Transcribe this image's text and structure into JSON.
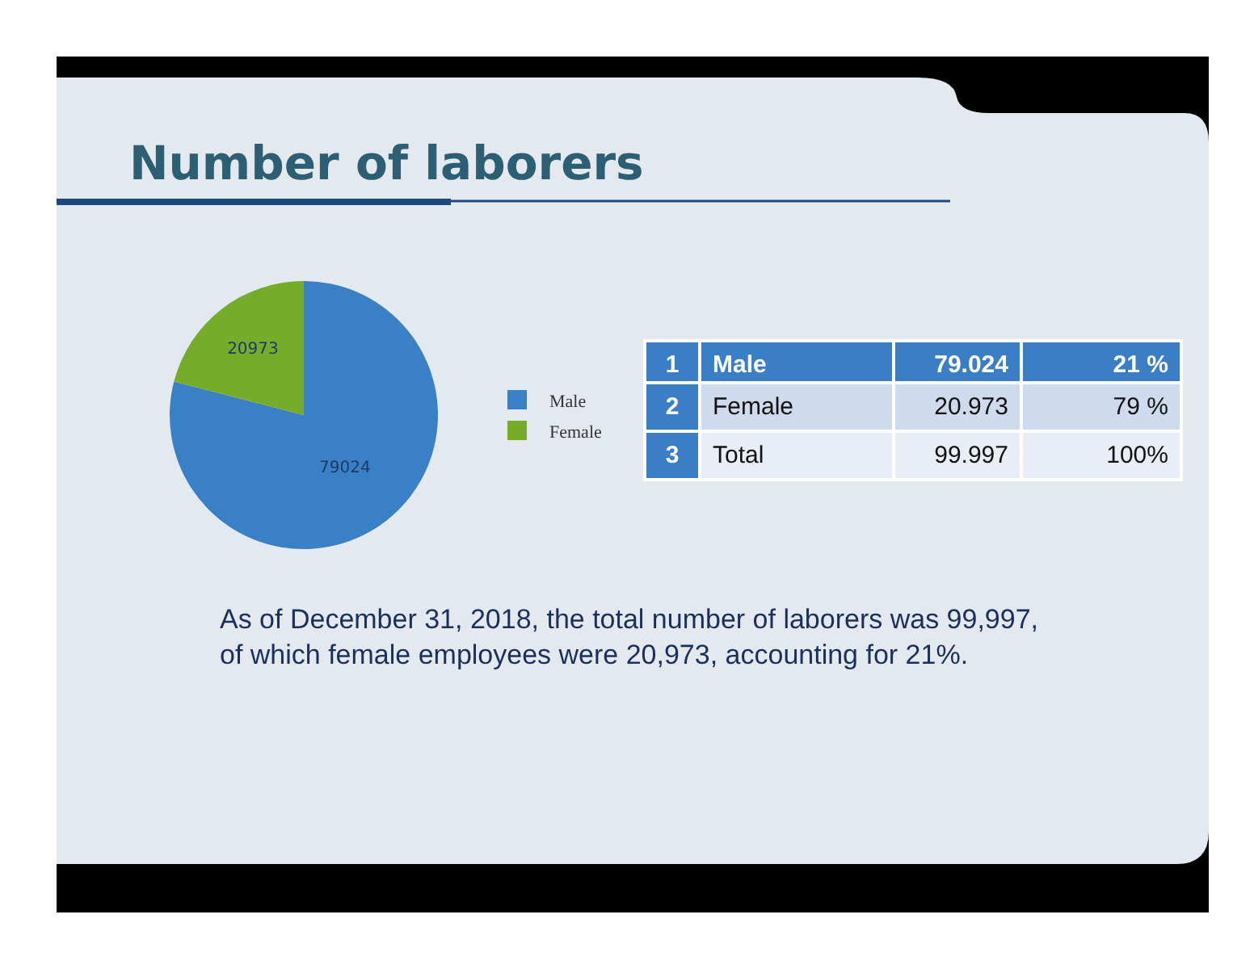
{
  "chart_data": [
    {
      "type": "pie",
      "title": "Number of laborers",
      "categories": [
        "Male",
        "Female"
      ],
      "values": [
        79024,
        20973
      ],
      "colors": [
        "#3a80c6",
        "#77ac2b"
      ],
      "data_labels": true,
      "legend": "right",
      "annotations": [
        "As of December 31, 2018, the total number of laborers was 99,997, of which female employees were 20,973, accounting for 21%."
      ]
    },
    {
      "type": "other",
      "cell_labels": [
        [
          "1",
          "Male",
          "79.024",
          "21 %"
        ],
        [
          "2",
          "Female",
          "20.973",
          "79 %"
        ],
        [
          "3",
          "Total",
          "99.997",
          "100%"
        ]
      ]
    }
  ]
}
